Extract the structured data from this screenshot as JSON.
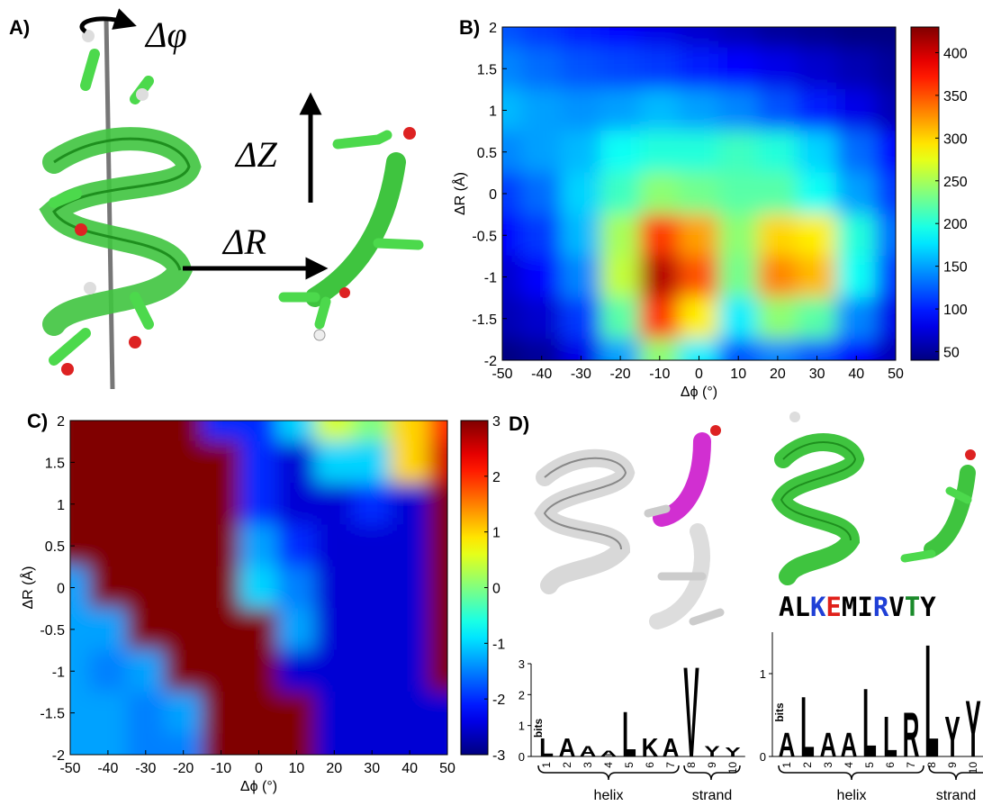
{
  "panel_a": {
    "label": "A)",
    "rotation": "Δφ",
    "z": "ΔZ",
    "r": "ΔR"
  },
  "panel_d": {
    "label": "D)",
    "sequence": {
      "letters": [
        "A",
        "L",
        "K",
        "E",
        "M",
        "I",
        "R",
        "V",
        "T",
        "Y"
      ],
      "colors": [
        "#000000",
        "#000000",
        "#1f3fd6",
        "#e0201a",
        "#000000",
        "#000000",
        "#1f3fd6",
        "#000000",
        "#1a8a2a",
        "#000000"
      ]
    },
    "groups": [
      "helix",
      "strand"
    ]
  },
  "chart_data": [
    {
      "type": "heatmap",
      "label": "B)",
      "xlabel": "Δϕ (°)",
      "ylabel": "ΔR (Å)",
      "x": [
        -50,
        -40,
        -30,
        -20,
        -10,
        0,
        10,
        20,
        30,
        40,
        50
      ],
      "y": [
        2,
        1.5,
        1,
        0.5,
        0,
        -0.5,
        -1,
        -1.5,
        -2
      ],
      "z": [
        [
          120,
          110,
          100,
          90,
          80,
          70,
          60,
          50,
          45,
          40,
          40
        ],
        [
          140,
          130,
          120,
          115,
          110,
          100,
          90,
          80,
          70,
          60,
          50
        ],
        [
          160,
          150,
          145,
          150,
          160,
          150,
          140,
          120,
          100,
          80,
          60
        ],
        [
          140,
          150,
          160,
          190,
          200,
          200,
          210,
          200,
          170,
          130,
          90
        ],
        [
          110,
          130,
          170,
          210,
          240,
          230,
          220,
          220,
          190,
          150,
          110
        ],
        [
          90,
          110,
          160,
          250,
          360,
          320,
          240,
          300,
          290,
          200,
          130
        ],
        [
          70,
          90,
          140,
          260,
          410,
          350,
          230,
          330,
          310,
          190,
          110
        ],
        [
          60,
          70,
          110,
          220,
          360,
          290,
          180,
          240,
          220,
          140,
          80
        ],
        [
          40,
          50,
          80,
          150,
          240,
          180,
          120,
          140,
          120,
          90,
          60
        ]
      ],
      "xlim": [
        -50,
        50
      ],
      "ylim": [
        -2,
        2
      ],
      "xticks": [
        -50,
        -40,
        -30,
        -20,
        -10,
        0,
        10,
        20,
        30,
        40,
        50
      ],
      "yticks": [
        -2,
        -1.5,
        -1,
        -0.5,
        0,
        0.5,
        1,
        1.5,
        2
      ],
      "clim": [
        40,
        430
      ],
      "cticks": [
        50,
        100,
        150,
        200,
        250,
        300,
        350,
        400
      ],
      "colormap": "jet"
    },
    {
      "type": "heatmap",
      "label": "C)",
      "xlabel": "Δϕ (°)",
      "ylabel": "ΔR (Å)",
      "x": [
        -50,
        -40,
        -30,
        -20,
        -10,
        0,
        10,
        20,
        30,
        40,
        50
      ],
      "y": [
        2,
        1.5,
        1,
        0.5,
        0,
        -0.5,
        -1,
        -1.5,
        -2
      ],
      "z": [
        [
          3,
          3,
          3,
          3,
          -2,
          -2,
          -1,
          0.5,
          0,
          1,
          2
        ],
        [
          3,
          3,
          3,
          3,
          3,
          -2,
          -2.5,
          -1,
          -1,
          1,
          2.5
        ],
        [
          3,
          3,
          3,
          3,
          3,
          -2,
          -2.5,
          -2.5,
          -2,
          -2.5,
          3
        ],
        [
          3,
          3,
          3,
          3,
          3,
          -1.3,
          -2,
          -2.5,
          -2.5,
          -2.5,
          3
        ],
        [
          -1.3,
          3,
          3,
          3,
          3,
          -1,
          -1.5,
          -2.5,
          -2.5,
          -2.5,
          3
        ],
        [
          -1.3,
          -1.3,
          3,
          3,
          3,
          3,
          -1.3,
          -2.5,
          -2.5,
          -2.5,
          3
        ],
        [
          -1.3,
          -1.5,
          -1.3,
          3,
          3,
          3,
          -2.5,
          -2.5,
          -2.5,
          -2.5,
          3
        ],
        [
          -1.3,
          -1.3,
          -1.5,
          -1.3,
          3,
          3,
          3,
          -2.5,
          -2.5,
          -2.5,
          -2.5
        ],
        [
          -1.3,
          -1.3,
          -1.5,
          -1.5,
          3,
          3,
          3,
          -2.5,
          -2.5,
          -2.5,
          -2.5
        ]
      ],
      "xlim": [
        -50,
        50
      ],
      "ylim": [
        -2,
        2
      ],
      "xticks": [
        -50,
        -40,
        -30,
        -20,
        -10,
        0,
        10,
        20,
        30,
        40,
        50
      ],
      "yticks": [
        -2,
        -1.5,
        -1,
        -0.5,
        0,
        0.5,
        1,
        1.5,
        2
      ],
      "clim": [
        -3,
        3
      ],
      "cticks": [
        -3,
        -2,
        -1,
        0,
        1,
        2,
        3
      ],
      "colormap": "jet"
    },
    {
      "type": "logo",
      "ylabel": "bits",
      "categories": [
        "1",
        "2",
        "3",
        "4",
        "5",
        "6",
        "7",
        "8",
        "9",
        "10"
      ],
      "letters": [
        "L",
        "A",
        "A",
        "A",
        "L",
        "K",
        "A",
        "V",
        "Y",
        "Y"
      ],
      "values": [
        0.6,
        0.6,
        0.35,
        0.2,
        1.5,
        0.6,
        0.6,
        3.0,
        0.35,
        0.3
      ],
      "colors": [
        "#000000",
        "#000000",
        "#000000",
        "#000000",
        "#000000",
        "#1f3fd6",
        "#e0201a",
        "#000000",
        "#000000",
        "#000000"
      ],
      "ylim": [
        0,
        3
      ],
      "yticks": [
        0,
        1,
        2,
        3
      ]
    },
    {
      "type": "logo",
      "ylabel": "bits",
      "categories": [
        "1",
        "2",
        "3",
        "4",
        "5",
        "6",
        "7",
        "8",
        "9",
        "10"
      ],
      "letters": [
        "A",
        "L",
        "A",
        "A",
        "L",
        "L",
        "R",
        "L",
        "Y",
        "Y"
      ],
      "values": [
        0.3,
        0.75,
        0.3,
        0.3,
        0.85,
        0.5,
        0.55,
        1.4,
        0.5,
        0.7
      ],
      "colors": [
        "#000000",
        "#000000",
        "#000000",
        "#000000",
        "#000000",
        "#000000",
        "#1f3fd6",
        "#000000",
        "#000000",
        "#000000"
      ],
      "ylim": [
        0,
        1.5
      ],
      "yticks": [
        0,
        1
      ]
    }
  ]
}
